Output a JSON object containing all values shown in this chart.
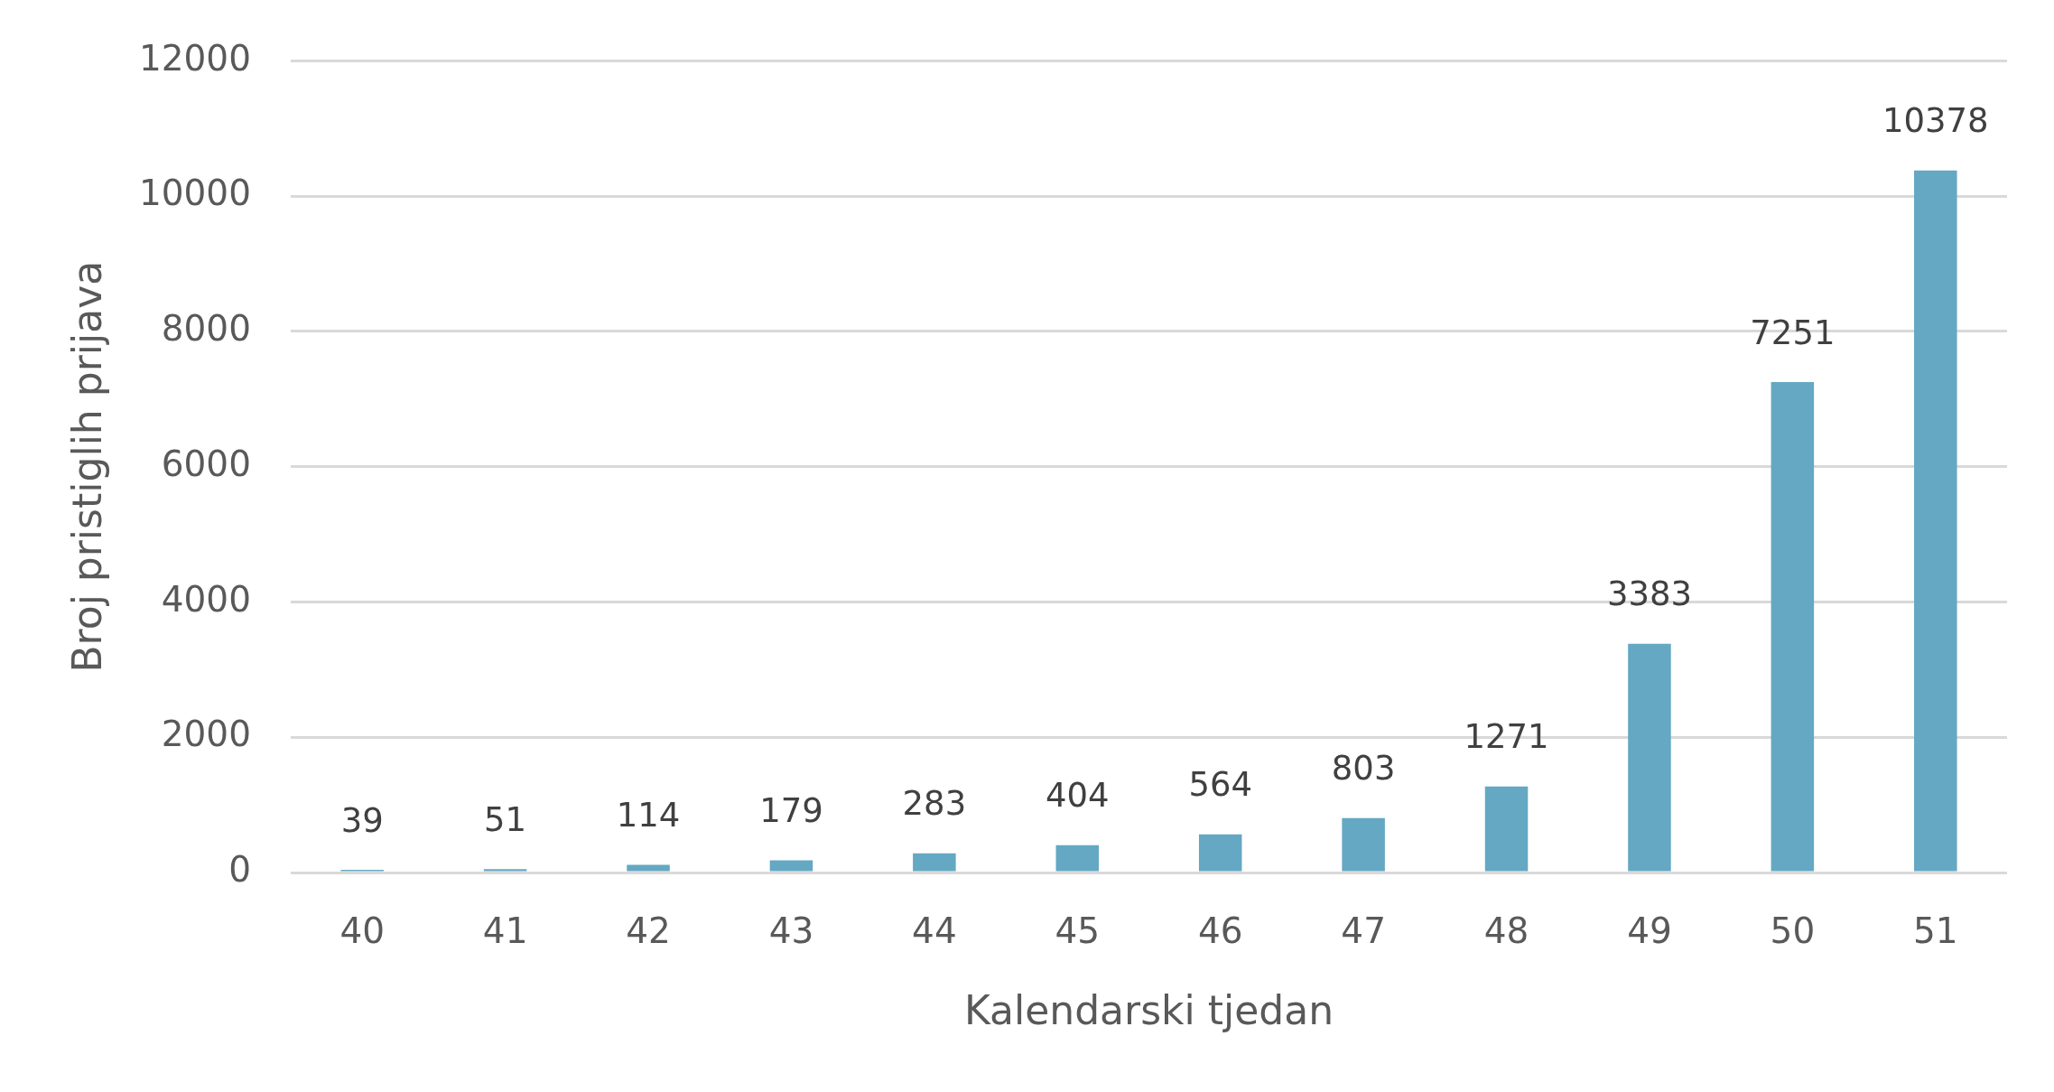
{
  "chart_data": {
    "type": "bar",
    "xlabel": "Kalendarski tjedan",
    "ylabel": "Broj pristiglih prijava",
    "categories": [
      "40",
      "41",
      "42",
      "43",
      "44",
      "45",
      "46",
      "47",
      "48",
      "49",
      "50",
      "51"
    ],
    "values": [
      39,
      51,
      114,
      179,
      283,
      404,
      564,
      803,
      1271,
      3383,
      7251,
      10378
    ],
    "color": "#64a8c3",
    "ylim": [
      0,
      12000
    ],
    "yticks": [
      0,
      2000,
      4000,
      6000,
      8000,
      10000,
      12000
    ],
    "grid": "y",
    "data_labels": true
  }
}
